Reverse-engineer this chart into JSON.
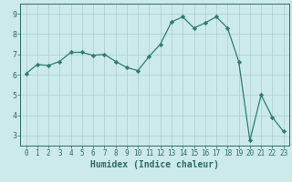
{
  "x": [
    0,
    1,
    2,
    3,
    4,
    5,
    6,
    7,
    8,
    9,
    10,
    11,
    12,
    13,
    14,
    15,
    16,
    17,
    18,
    19,
    20,
    21,
    22,
    23
  ],
  "y": [
    6.05,
    6.5,
    6.45,
    6.65,
    7.1,
    7.1,
    6.95,
    7.0,
    6.65,
    6.35,
    6.2,
    6.9,
    7.5,
    8.6,
    8.85,
    8.3,
    8.55,
    8.85,
    8.3,
    6.65,
    2.75,
    5.0,
    3.9,
    3.2
  ],
  "line_color": "#2e7d6e",
  "marker": "D",
  "marker_size": 2.2,
  "bg_color": "#cceaea",
  "grid_color": "#aacccc",
  "xlabel": "Humidex (Indice chaleur)",
  "xlim": [
    -0.5,
    23.5
  ],
  "ylim": [
    2.5,
    9.5
  ],
  "yticks": [
    3,
    4,
    5,
    6,
    7,
    8,
    9
  ],
  "xticks": [
    0,
    1,
    2,
    3,
    4,
    5,
    6,
    7,
    8,
    9,
    10,
    11,
    12,
    13,
    14,
    15,
    16,
    17,
    18,
    19,
    20,
    21,
    22,
    23
  ],
  "tick_color": "#2e6b5e",
  "xlabel_fontsize": 7,
  "tick_fontsize": 5.5,
  "linewidth": 0.9
}
